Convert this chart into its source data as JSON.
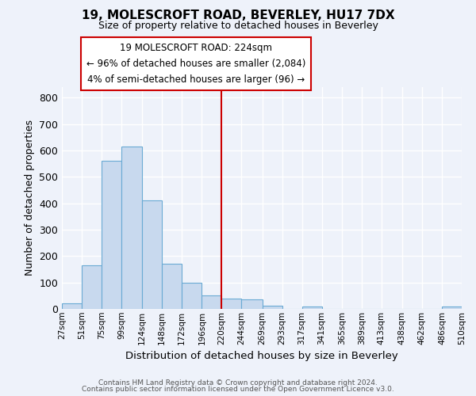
{
  "title": "19, MOLESCROFT ROAD, BEVERLEY, HU17 7DX",
  "subtitle": "Size of property relative to detached houses in Beverley",
  "xlabel": "Distribution of detached houses by size in Beverley",
  "ylabel": "Number of detached properties",
  "bar_color": "#c8d9ee",
  "bar_edge_color": "#6aaad4",
  "background_color": "#eef2fa",
  "grid_color": "#ffffff",
  "vline_x": 220,
  "vline_color": "#cc0000",
  "bin_edges": [
    27,
    51,
    75,
    99,
    124,
    148,
    172,
    196,
    220,
    244,
    269,
    293,
    317,
    341,
    365,
    389,
    413,
    438,
    462,
    486,
    510
  ],
  "bin_labels": [
    "27sqm",
    "51sqm",
    "75sqm",
    "99sqm",
    "124sqm",
    "148sqm",
    "172sqm",
    "196sqm",
    "220sqm",
    "244sqm",
    "269sqm",
    "293sqm",
    "317sqm",
    "341sqm",
    "365sqm",
    "389sqm",
    "413sqm",
    "438sqm",
    "462sqm",
    "486sqm",
    "510sqm"
  ],
  "counts": [
    20,
    165,
    560,
    615,
    410,
    170,
    100,
    50,
    40,
    35,
    13,
    0,
    10,
    0,
    0,
    0,
    0,
    0,
    0,
    8
  ],
  "ylim": [
    0,
    840
  ],
  "yticks": [
    0,
    100,
    200,
    300,
    400,
    500,
    600,
    700,
    800
  ],
  "annotation_title": "19 MOLESCROFT ROAD: 224sqm",
  "annotation_line1": "← 96% of detached houses are smaller (2,084)",
  "annotation_line2": "4% of semi-detached houses are larger (96) →",
  "annotation_box_color": "#ffffff",
  "annotation_box_edge": "#cc0000",
  "footer1": "Contains HM Land Registry data © Crown copyright and database right 2024.",
  "footer2": "Contains public sector information licensed under the Open Government Licence v3.0."
}
